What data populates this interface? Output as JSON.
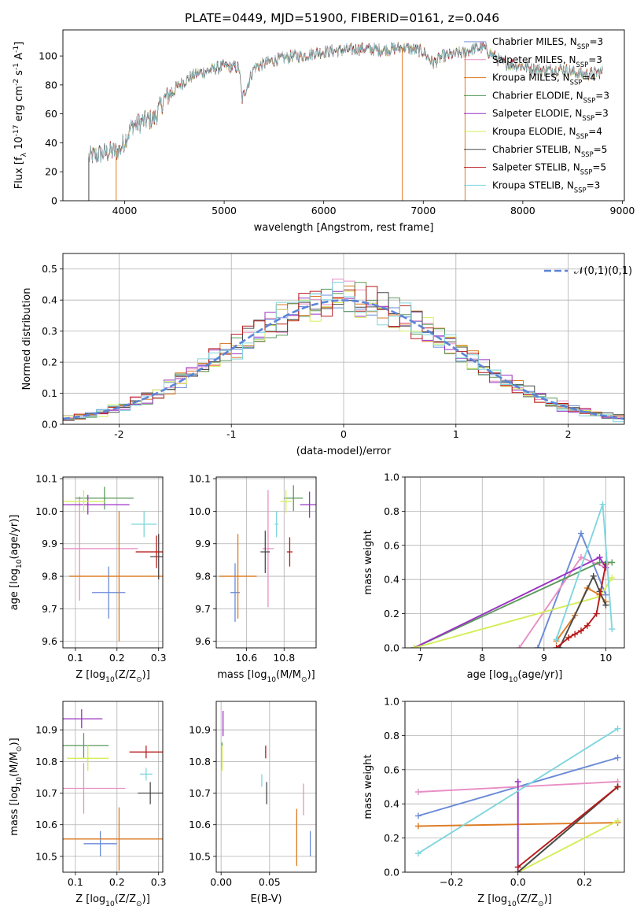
{
  "figure_title": "PLATE=0449, MJD=51900, FIBERID=0161, z=0.046",
  "colors": [
    "#6a8ad8",
    "#e88ec4",
    "#dd7a22",
    "#5c9a5c",
    "#9b30c4",
    "#d4ee56",
    "#4a4a4a",
    "#b81a1a",
    "#80d6de"
  ],
  "chart_data": [
    {
      "id": "spectrum",
      "type": "line",
      "xlabel": "wavelength [Angstrom, rest frame]",
      "ylabel": "Flux [f$_\\lambda$ 10$^{-17}$ erg cm$^{-2}$ s$^{-1}$ A$^{-1}$]",
      "xlim": [
        3380,
        9020
      ],
      "ylim": [
        0,
        118
      ],
      "xticks": [
        4000,
        5000,
        6000,
        7000,
        8000,
        9000
      ],
      "yticks": [
        0,
        20,
        40,
        60,
        80,
        100
      ],
      "grid": false,
      "legend_position": "top-right",
      "continuum_x": [
        3640,
        3800,
        3950,
        4080,
        4200,
        4300,
        4400,
        4550,
        4700,
        4850,
        5000,
        5150,
        5180,
        5300,
        5500,
        5700,
        5800,
        5900,
        6000,
        6200,
        6400,
        6600,
        6800,
        7000,
        7100,
        7200,
        7300,
        7400,
        7500,
        7600,
        7800,
        8000,
        8200,
        8400,
        8600,
        8800
      ],
      "continuum_y": [
        30,
        33,
        35,
        52,
        55,
        57,
        70,
        80,
        87,
        90,
        93,
        92,
        70,
        92,
        97,
        100,
        100,
        102,
        103,
        104,
        105,
        104,
        106,
        103,
        95,
        100,
        101,
        102,
        105,
        106,
        95,
        93,
        90,
        91,
        87,
        89
      ],
      "series": [
        {
          "name": "Chabrier MILES, N$_{SSP}$=3"
        },
        {
          "name": "Salpeter MILES, N$_{SSP}$=3"
        },
        {
          "name": "Kroupa MILES, N$_{SSP}$=4"
        },
        {
          "name": "Chabrier ELODIE, N$_{SSP}$=3"
        },
        {
          "name": "Salpeter ELODIE, N$_{SSP}$=3"
        },
        {
          "name": "Kroupa ELODIE, N$_{SSP}$=4"
        },
        {
          "name": "Chabrier STELIB, N$_{SSP}$=5"
        },
        {
          "name": "Salpeter STELIB, N$_{SSP}$=5"
        },
        {
          "name": "Kroupa STELIB, N$_{SSP}$=3"
        }
      ],
      "drop_lines": [
        {
          "x": 3915,
          "series": 2
        },
        {
          "x": 6790,
          "series": 2
        },
        {
          "x": 7420,
          "series": 2
        },
        {
          "x": 3640,
          "series": 6
        }
      ]
    },
    {
      "id": "residuals",
      "type": "histogram",
      "xlabel": "(data-model)/error",
      "ylabel": "Normed distribution",
      "xlim": [
        -2.5,
        2.5
      ],
      "ylim": [
        0,
        0.55
      ],
      "xticks": [
        -2,
        -1,
        0,
        1,
        2
      ],
      "yticks": [
        0.0,
        0.1,
        0.2,
        0.3,
        0.4,
        0.5
      ],
      "grid": true,
      "bin_width": 0.1,
      "legend": {
        "label": "\\mathcal{N}(0,1)",
        "position": "top-right"
      }
    },
    {
      "id": "z_age",
      "type": "errorbar",
      "xlabel": "Z [log$_{10}$(Z/Z$_\\odot$)]",
      "ylabel": "age  [log$_{10}$(age/yr)]",
      "xlim": [
        0.07,
        0.31
      ],
      "ylim": [
        9.58,
        10.105
      ],
      "xticks": [
        0.1,
        0.2,
        0.3
      ],
      "yticks": [
        9.6,
        9.7,
        9.8,
        9.9,
        10.0,
        10.1
      ],
      "grid": true,
      "points": [
        {
          "x": 0.18,
          "xerr": 0.04,
          "y": 9.75,
          "yerr": 0.08
        },
        {
          "x": 0.11,
          "xerr": 0.14,
          "y": 9.885,
          "yerr": 0.16
        },
        {
          "x": 0.205,
          "xerr": 0.12,
          "y": 9.8,
          "yerr": 0.2
        },
        {
          "x": 0.17,
          "xerr": 0.07,
          "y": 10.04,
          "yerr": 0.035
        },
        {
          "x": 0.13,
          "xerr": 0.1,
          "y": 10.02,
          "yerr": 0.03
        },
        {
          "x": 0.12,
          "xerr": 0.05,
          "y": 10.03,
          "yerr": 0.035
        },
        {
          "x": 0.3,
          "xerr": 0.02,
          "y": 9.86,
          "yerr": 0.07
        },
        {
          "x": 0.295,
          "xerr": 0.05,
          "y": 9.875,
          "yerr": 0.05
        },
        {
          "x": 0.265,
          "xerr": 0.03,
          "y": 9.96,
          "yerr": 0.04
        }
      ]
    },
    {
      "id": "mass_age",
      "type": "errorbar",
      "xlabel": "mass [log$_{10}$(M/M$_\\odot$)]",
      "ylabel": "",
      "xlim": [
        10.44,
        10.97
      ],
      "ylim": [
        9.58,
        10.105
      ],
      "xticks": [
        10.6,
        10.8
      ],
      "yticks": [
        9.6,
        9.7,
        9.8,
        9.9,
        10.0,
        10.1
      ],
      "grid": true,
      "points": [
        {
          "x": 10.54,
          "xerr": 0.025,
          "y": 9.75,
          "yerr": 0.09
        },
        {
          "x": 10.715,
          "xerr": 0.03,
          "y": 9.885,
          "yerr": 0.18
        },
        {
          "x": 10.555,
          "xerr": 0.1,
          "y": 9.8,
          "yerr": 0.13
        },
        {
          "x": 10.85,
          "xerr": 0.05,
          "y": 10.04,
          "yerr": 0.04
        },
        {
          "x": 10.935,
          "xerr": 0.05,
          "y": 10.02,
          "yerr": 0.04
        },
        {
          "x": 10.81,
          "xerr": 0.03,
          "y": 10.03,
          "yerr": 0.035
        },
        {
          "x": 10.7,
          "xerr": 0.025,
          "y": 9.875,
          "yerr": 0.065
        },
        {
          "x": 10.83,
          "xerr": 0.015,
          "y": 9.875,
          "yerr": 0.045
        },
        {
          "x": 10.76,
          "xerr": 0.01,
          "y": 9.96,
          "yerr": 0.04
        }
      ]
    },
    {
      "id": "age_weight",
      "type": "line",
      "xlabel": "age  [log$_{10}$(age/yr)]",
      "ylabel": "mass weight",
      "xlim": [
        6.75,
        10.3
      ],
      "ylim": [
        0,
        1.0
      ],
      "xticks": [
        7,
        8,
        9,
        10
      ],
      "yticks": [
        0.0,
        0.2,
        0.4,
        0.6,
        0.8,
        1.0
      ],
      "grid": true,
      "series": [
        {
          "x": [
            8.9,
            9.6,
            10.0
          ],
          "y": [
            0.0,
            0.67,
            0.31
          ]
        },
        {
          "x": [
            8.6,
            9.6,
            10.0
          ],
          "y": [
            0.0,
            0.53,
            0.47
          ]
        },
        {
          "x": [
            9.2,
            9.5,
            9.7,
            9.9,
            10.0
          ],
          "y": [
            0.04,
            0.19,
            0.35,
            0.31,
            0.27
          ]
        },
        {
          "x": [
            6.9,
            9.9,
            10.1
          ],
          "y": [
            0.0,
            0.5,
            0.5
          ]
        },
        {
          "x": [
            6.9,
            9.9,
            10.0
          ],
          "y": [
            0.0,
            0.53,
            0.47
          ]
        },
        {
          "x": [
            6.9,
            9.9,
            10.1
          ],
          "y": [
            0.0,
            0.3,
            0.41
          ]
        },
        {
          "x": [
            9.25,
            9.8,
            9.9,
            10.0
          ],
          "y": [
            0.0,
            0.42,
            0.33,
            0.25
          ]
        },
        {
          "x": [
            9.2,
            9.4,
            9.5,
            9.6,
            9.7,
            9.85,
            10.0
          ],
          "y": [
            0.0,
            0.06,
            0.08,
            0.1,
            0.13,
            0.2,
            0.49
          ]
        },
        {
          "x": [
            9.2,
            9.95,
            10.1
          ],
          "y": [
            0.05,
            0.84,
            0.11
          ]
        }
      ]
    },
    {
      "id": "z_mass",
      "type": "errorbar",
      "xlabel": "Z [log$_{10}$(Z/Z$_\\odot$)]",
      "ylabel": "mass [log$_{10}$(M/M$_\\odot$)]",
      "xlim": [
        0.07,
        0.31
      ],
      "ylim": [
        10.45,
        10.99
      ],
      "xticks": [
        0.1,
        0.2,
        0.3
      ],
      "yticks": [
        10.5,
        10.6,
        10.7,
        10.8,
        10.9
      ],
      "grid": true,
      "points": [
        {
          "x": 0.16,
          "xerr": 0.04,
          "y": 10.54,
          "yerr": 0.04
        },
        {
          "x": 0.12,
          "xerr": 0.1,
          "y": 10.715,
          "yerr": 0.08
        },
        {
          "x": 0.205,
          "xerr": 0.15,
          "y": 10.555,
          "yerr": 0.1
        },
        {
          "x": 0.12,
          "xerr": 0.06,
          "y": 10.85,
          "yerr": 0.04
        },
        {
          "x": 0.115,
          "xerr": 0.05,
          "y": 10.935,
          "yerr": 0.03
        },
        {
          "x": 0.13,
          "xerr": 0.05,
          "y": 10.81,
          "yerr": 0.04
        },
        {
          "x": 0.28,
          "xerr": 0.03,
          "y": 10.7,
          "yerr": 0.035
        },
        {
          "x": 0.27,
          "xerr": 0.04,
          "y": 10.83,
          "yerr": 0.02
        },
        {
          "x": 0.27,
          "xerr": 0.015,
          "y": 10.76,
          "yerr": 0.02
        }
      ]
    },
    {
      "id": "ebv_mass",
      "type": "errorbar",
      "xlabel": "E(B-V)",
      "ylabel": "",
      "xlim": [
        -0.005,
        0.098
      ],
      "ylim": [
        10.45,
        10.99
      ],
      "xticks": [
        0.0,
        0.05
      ],
      "yticks": [
        10.5,
        10.6,
        10.7,
        10.8,
        10.9
      ],
      "grid": true,
      "points": [
        {
          "x": 0.092,
          "xerr": 0.0,
          "y": 10.54,
          "yerr": 0.04
        },
        {
          "x": 0.085,
          "xerr": 0.0,
          "y": 10.68,
          "yerr": 0.05
        },
        {
          "x": 0.078,
          "xerr": 0.0,
          "y": 10.56,
          "yerr": 0.09
        },
        {
          "x": 0.001,
          "xerr": 0.0,
          "y": 10.82,
          "yerr": 0.04
        },
        {
          "x": 0.002,
          "xerr": 0.0,
          "y": 10.92,
          "yerr": 0.04
        },
        {
          "x": 0.001,
          "xerr": 0.0,
          "y": 10.81,
          "yerr": 0.04
        },
        {
          "x": 0.047,
          "xerr": 0.0,
          "y": 10.7,
          "yerr": 0.035
        },
        {
          "x": 0.046,
          "xerr": 0.0,
          "y": 10.83,
          "yerr": 0.02
        },
        {
          "x": 0.042,
          "xerr": 0.0,
          "y": 10.74,
          "yerr": 0.02
        }
      ]
    },
    {
      "id": "z_weight",
      "type": "line",
      "xlabel": "Z [log$_{10}$(Z/Z$_\\odot$)]",
      "ylabel": "mass weight",
      "xlim": [
        -0.34,
        0.32
      ],
      "ylim": [
        0,
        1.0
      ],
      "xticks": [
        -0.2,
        0.0,
        0.2
      ],
      "yticks": [
        0.0,
        0.2,
        0.4,
        0.6,
        0.8,
        1.0
      ],
      "grid": true,
      "series": [
        {
          "x": [
            -0.3,
            0.3
          ],
          "y": [
            0.33,
            0.67
          ]
        },
        {
          "x": [
            -0.3,
            0.3
          ],
          "y": [
            0.47,
            0.53
          ]
        },
        {
          "x": [
            -0.3,
            0.3
          ],
          "y": [
            0.27,
            0.29
          ]
        },
        {
          "x": [
            0.0,
            0.3
          ],
          "y": [
            0.0,
            0.5
          ]
        },
        {
          "x": [
            0.0,
            0.0
          ],
          "y": [
            0.53,
            0.0
          ]
        },
        {
          "x": [
            0.0,
            0.3
          ],
          "y": [
            0.0,
            0.3
          ]
        },
        {
          "x": [
            0.0,
            0.3
          ],
          "y": [
            0.0,
            0.5
          ]
        },
        {
          "x": [
            0.0,
            0.3
          ],
          "y": [
            0.03,
            0.5
          ]
        },
        {
          "x": [
            -0.3,
            0.3
          ],
          "y": [
            0.11,
            0.84
          ]
        }
      ]
    }
  ]
}
